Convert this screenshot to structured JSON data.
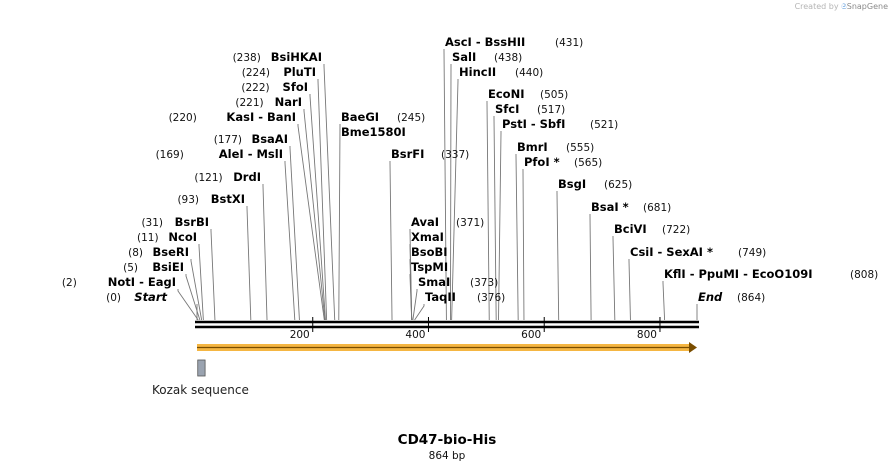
{
  "credit": {
    "prefix": "Created by",
    "brand": "SnapGene"
  },
  "map": {
    "name": "CD47-bio-His",
    "length_label": "864 bp",
    "length": 864
  },
  "ticks": [
    {
      "label": "200",
      "pos": 200
    },
    {
      "label": "400",
      "pos": 400
    },
    {
      "label": "600",
      "pos": 600
    },
    {
      "label": "800",
      "pos": 800
    }
  ],
  "sites": [
    {
      "label": "Start",
      "pos": 0,
      "posLabel": "(0)",
      "italic": true,
      "side": "left"
    },
    {
      "label": "NotI  - EagI",
      "pos": 2,
      "posLabel": "(2)",
      "side": "left"
    },
    {
      "label": "BsiEI",
      "pos": 5,
      "posLabel": "(5)",
      "side": "left"
    },
    {
      "label": "BseRI",
      "pos": 8,
      "posLabel": "(8)",
      "side": "left"
    },
    {
      "label": "NcoI",
      "pos": 11,
      "posLabel": "(11)",
      "side": "left"
    },
    {
      "label": "BsrBI",
      "pos": 31,
      "posLabel": "(31)",
      "side": "left"
    },
    {
      "label": "BstXI",
      "pos": 93,
      "posLabel": "(93)",
      "side": "left"
    },
    {
      "label": "DrdI",
      "pos": 121,
      "posLabel": "(121)",
      "side": "left"
    },
    {
      "label": "AleI  - MslI",
      "pos": 169,
      "posLabel": "(169)",
      "side": "left"
    },
    {
      "label": "BsaAI",
      "pos": 177,
      "posLabel": "(177)",
      "side": "left"
    },
    {
      "label": "KasI  - BanI",
      "pos": 220,
      "posLabel": "(220)",
      "side": "left"
    },
    {
      "label": "NarI",
      "pos": 221,
      "posLabel": "(221)",
      "side": "left"
    },
    {
      "label": "SfoI",
      "pos": 222,
      "posLabel": "(222)",
      "side": "left"
    },
    {
      "label": "PluTI",
      "pos": 224,
      "posLabel": "(224)",
      "side": "left"
    },
    {
      "label": "BsiHKAI",
      "pos": 238,
      "posLabel": "(238)",
      "side": "left"
    },
    {
      "label": "BaeGI",
      "pos": 245,
      "posLabel": "(245)",
      "side": "right"
    },
    {
      "label": "Bme1580I",
      "pos": 245,
      "posLabel": "",
      "side": "right"
    },
    {
      "label": "BsrFI",
      "pos": 337,
      "posLabel": "(337)",
      "side": "right"
    },
    {
      "label": "TaqII",
      "pos": 376,
      "posLabel": "(376)",
      "side": "right"
    },
    {
      "label": "SmaI",
      "pos": 373,
      "posLabel": "(373)",
      "side": "right"
    },
    {
      "label": "TspMI",
      "pos": 371,
      "posLabel": "",
      "side": "right"
    },
    {
      "label": "BsoBI",
      "pos": 371,
      "posLabel": "",
      "side": "right"
    },
    {
      "label": "XmaI",
      "pos": 371,
      "posLabel": "",
      "side": "right"
    },
    {
      "label": "AvaI",
      "pos": 371,
      "posLabel": "(371)",
      "side": "right"
    },
    {
      "label": "AscI  - BssHII",
      "pos": 431,
      "posLabel": "(431)",
      "side": "right"
    },
    {
      "label": "SalI",
      "pos": 438,
      "posLabel": "(438)",
      "side": "right"
    },
    {
      "label": "HincII",
      "pos": 440,
      "posLabel": "(440)",
      "side": "right"
    },
    {
      "label": "EcoNI",
      "pos": 505,
      "posLabel": "(505)",
      "side": "right"
    },
    {
      "label": "SfcI",
      "pos": 517,
      "posLabel": "(517)",
      "side": "right"
    },
    {
      "label": "PstI  - SbfI",
      "pos": 521,
      "posLabel": "(521)",
      "side": "right"
    },
    {
      "label": "BmrI",
      "pos": 555,
      "posLabel": "(555)",
      "side": "right"
    },
    {
      "label": "PfoI *",
      "pos": 565,
      "posLabel": "(565)",
      "side": "right"
    },
    {
      "label": "BsgI",
      "pos": 625,
      "posLabel": "(625)",
      "side": "right"
    },
    {
      "label": "BsaI *",
      "pos": 681,
      "posLabel": "(681)",
      "side": "right"
    },
    {
      "label": "BciVI",
      "pos": 722,
      "posLabel": "(722)",
      "side": "right"
    },
    {
      "label": "CsiI  - SexAI *",
      "pos": 749,
      "posLabel": "(749)",
      "side": "right"
    },
    {
      "label": "KflI  - PpuMI  - EcoO109I",
      "pos": 808,
      "posLabel": "(808)",
      "side": "right"
    },
    {
      "label": "End",
      "pos": 864,
      "posLabel": "(864)",
      "italic": true,
      "side": "right"
    }
  ],
  "features": [
    {
      "name": "orf-arrow",
      "type": "arrow",
      "start": 0,
      "end": 864,
      "color": "#f5b642",
      "label": ""
    },
    {
      "name": "kozak",
      "type": "box",
      "start": 3,
      "end": 14,
      "color": "#9aa3b0",
      "label": "Kozak sequence"
    }
  ]
}
